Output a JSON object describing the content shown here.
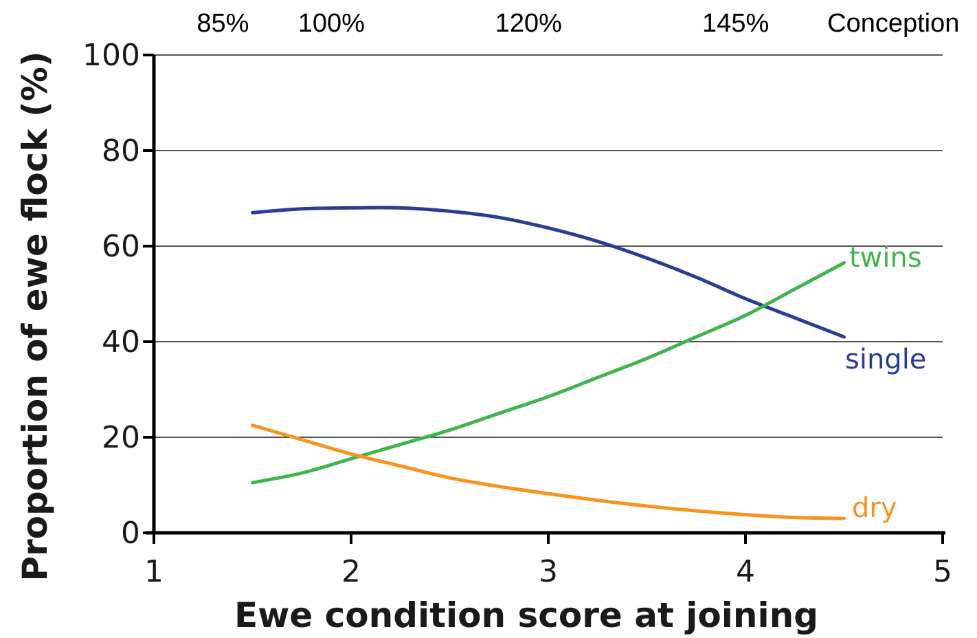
{
  "chart_data": {
    "type": "line",
    "title": "",
    "xlabel": "Ewe condition score at joining",
    "ylabel": "Proportion of ewe flock (%)",
    "xlim": [
      1,
      5
    ],
    "ylim": [
      0,
      100
    ],
    "x_ticks": [
      "1",
      "2",
      "3",
      "4",
      "5"
    ],
    "y_ticks": [
      "0",
      "20",
      "40",
      "60",
      "80",
      "100"
    ],
    "grid": "horizontal",
    "top_annotations": [
      {
        "text": "85%",
        "x": 1.35
      },
      {
        "text": "100%",
        "x": 1.9
      },
      {
        "text": "120%",
        "x": 2.9
      },
      {
        "text": "145%",
        "x": 3.95
      },
      {
        "text": "Conception",
        "x": 4.75
      }
    ],
    "series": [
      {
        "name": "single",
        "color": "#2b3c96",
        "x": [
          1.5,
          1.75,
          2.0,
          2.25,
          2.5,
          2.75,
          3.0,
          3.25,
          3.5,
          3.75,
          4.0,
          4.25,
          4.5
        ],
        "y": [
          67,
          67.8,
          68,
          68,
          67.3,
          66,
          63.8,
          61,
          57.5,
          53.5,
          49,
          45,
          41
        ]
      },
      {
        "name": "twins",
        "color": "#3fb54b",
        "x": [
          1.5,
          1.75,
          2.0,
          2.25,
          2.5,
          2.75,
          3.0,
          3.25,
          3.5,
          3.75,
          4.0,
          4.25,
          4.5
        ],
        "y": [
          10.5,
          12.5,
          15.5,
          18.5,
          21.5,
          25,
          28.5,
          32.5,
          36.5,
          41,
          45.5,
          51,
          56.5
        ]
      },
      {
        "name": "dry",
        "color": "#f7941d",
        "x": [
          1.5,
          1.75,
          2.0,
          2.25,
          2.5,
          2.75,
          3.0,
          3.25,
          3.5,
          3.75,
          4.0,
          4.25,
          4.5
        ],
        "y": [
          22.5,
          19.5,
          16.5,
          14,
          11.5,
          9.7,
          8.2,
          6.8,
          5.6,
          4.6,
          3.8,
          3.2,
          3.0
        ]
      }
    ]
  }
}
